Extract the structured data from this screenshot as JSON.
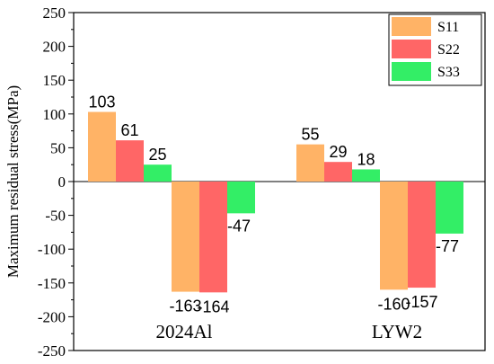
{
  "chart_data": {
    "type": "bar",
    "ylabel": "Maximum residual stress(MPa)",
    "ylim": [
      -250,
      250
    ],
    "yticks": [
      250,
      200,
      150,
      100,
      50,
      0,
      -50,
      -100,
      -150,
      -200,
      -250
    ],
    "legend_position": "top-right",
    "groups": [
      {
        "label": "2024Al",
        "subgroups": [
          {
            "sign": "positive",
            "values": [
              103,
              61,
              25
            ]
          },
          {
            "sign": "negative",
            "values": [
              -163,
              -164,
              -47
            ]
          }
        ]
      },
      {
        "label": "LYW2",
        "subgroups": [
          {
            "sign": "positive",
            "values": [
              55,
              29,
              18
            ]
          },
          {
            "sign": "negative",
            "values": [
              -160,
              -157,
              -77
            ]
          }
        ]
      }
    ],
    "series": [
      {
        "name": "S11",
        "color": "#FFB366"
      },
      {
        "name": "S22",
        "color": "#FF6666"
      },
      {
        "name": "S33",
        "color": "#33EE66"
      }
    ]
  }
}
